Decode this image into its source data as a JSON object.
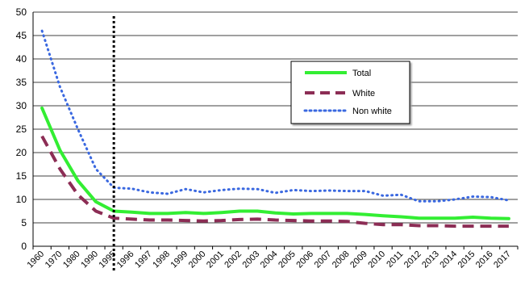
{
  "chart_data": {
    "type": "line",
    "title": "",
    "xlabel": "",
    "ylabel": "",
    "ylim": [
      0,
      50
    ],
    "yticks": [
      "0",
      "5",
      "10",
      "15",
      "20",
      "25",
      "30",
      "35",
      "40",
      "45",
      "50"
    ],
    "categories": [
      "1960",
      "1970",
      "1980",
      "1990",
      "1995",
      "1996",
      "1997",
      "1998",
      "1999",
      "2000",
      "2001",
      "2002",
      "2003",
      "2004",
      "2005",
      "2006",
      "2007",
      "2008",
      "2009",
      "2010",
      "2011",
      "2012",
      "2013",
      "2014",
      "2015",
      "2016",
      "2017"
    ],
    "series": [
      {
        "name": "Total",
        "color": "#33ee33",
        "style": "solid",
        "values": [
          29.5,
          20.5,
          14,
          9.5,
          7.5,
          7.3,
          7.0,
          7.0,
          7.2,
          7.0,
          7.2,
          7.5,
          7.5,
          7.1,
          6.9,
          7.0,
          7.0,
          7.0,
          6.8,
          6.5,
          6.3,
          6.0,
          6.0,
          6.0,
          6.2,
          6.0,
          5.9
        ]
      },
      {
        "name": "White",
        "color": "#8c2d55",
        "style": "dashed",
        "values": [
          23.5,
          16.5,
          11,
          7.5,
          6.0,
          5.8,
          5.6,
          5.6,
          5.5,
          5.4,
          5.5,
          5.7,
          5.8,
          5.6,
          5.5,
          5.4,
          5.4,
          5.3,
          4.9,
          4.6,
          4.6,
          4.4,
          4.4,
          4.3,
          4.3,
          4.3,
          4.3
        ]
      },
      {
        "name": "Non white",
        "color": "#3a68e0",
        "style": "dotted",
        "values": [
          46,
          34,
          25,
          16.5,
          12.5,
          12.3,
          11.5,
          11.2,
          12.2,
          11.5,
          12.0,
          12.3,
          12.2,
          11.4,
          12.0,
          11.8,
          11.9,
          11.8,
          11.8,
          10.8,
          11.0,
          9.6,
          9.6,
          10.0,
          10.6,
          10.5,
          9.8
        ]
      }
    ],
    "vline_at": "1995",
    "grid": true,
    "legend_position": "upper-right"
  }
}
